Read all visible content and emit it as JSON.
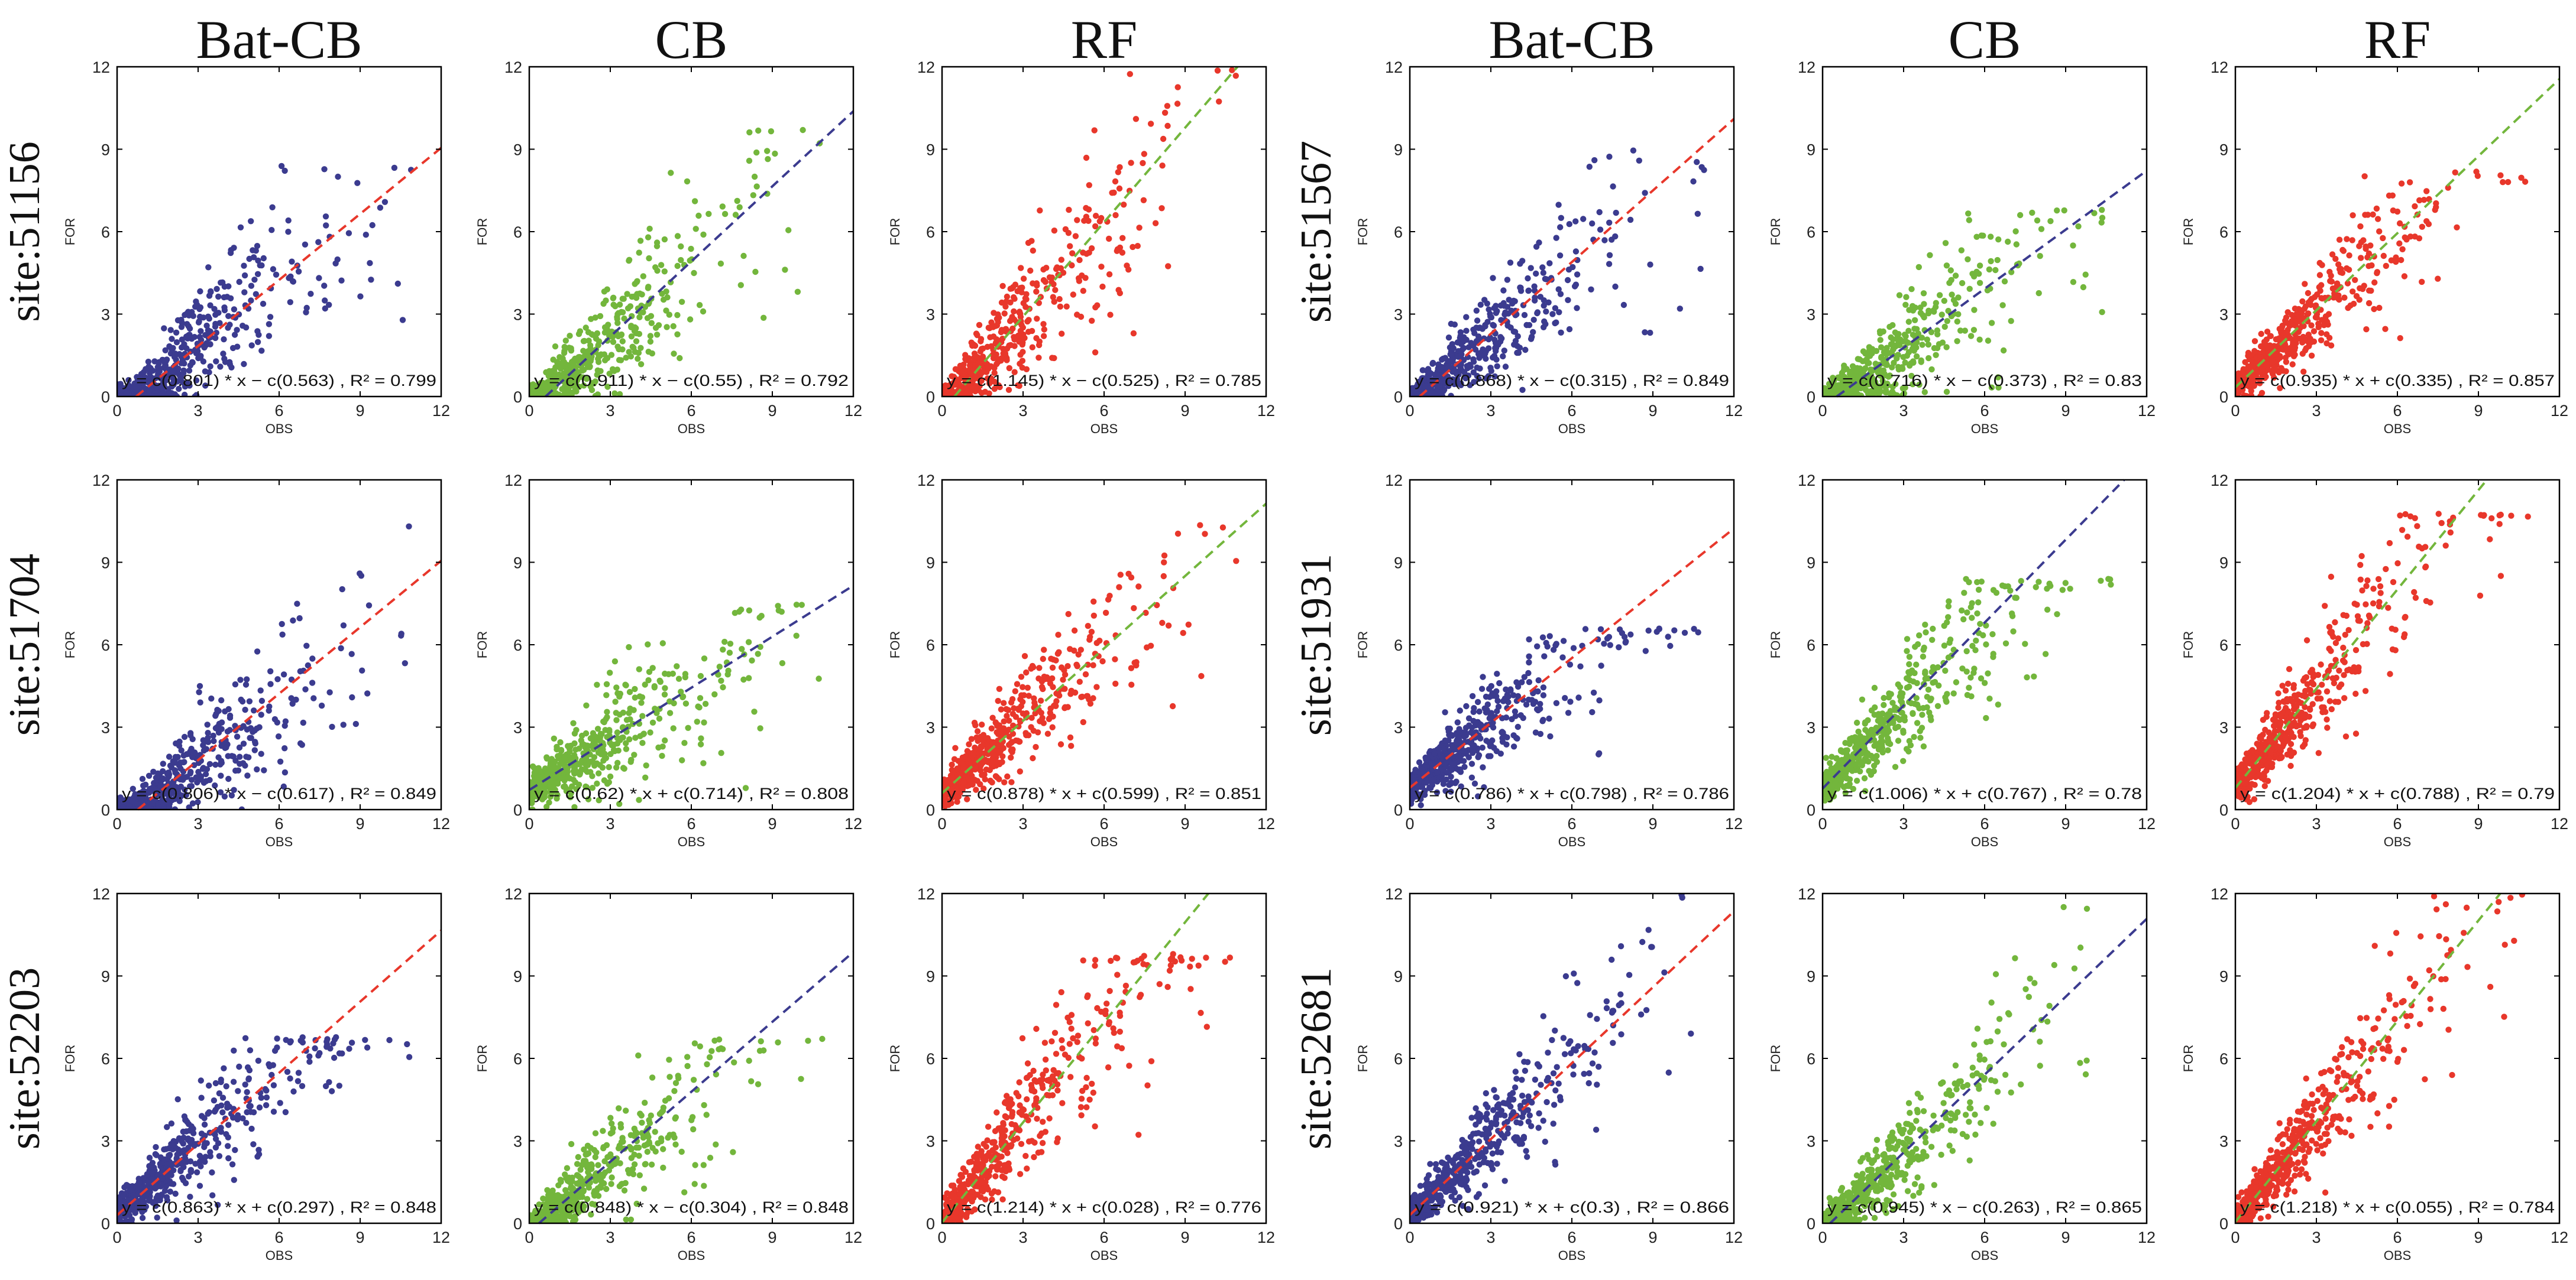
{
  "chart_data": [
    {
      "type": "scatter",
      "column_title": "Bat-CB",
      "row_title": "site:51156",
      "xlabel": "OBS",
      "ylabel": "FOR",
      "xlim": [
        0,
        12
      ],
      "ylim": [
        0,
        12
      ],
      "xticks": [
        0,
        3,
        6,
        9,
        12
      ],
      "yticks": [
        0,
        3,
        6,
        9,
        12
      ],
      "color": "#3b3b8f",
      "fit_color": "#e8372b",
      "slope": 0.801,
      "intercept": -0.563,
      "cap": 8.4,
      "spread": 0.22,
      "equation": "y = c(0.801) * x − c(0.563) , R² = 0.799"
    },
    {
      "type": "scatter",
      "column_title": "CB",
      "row_title": "site:51156",
      "xlabel": "OBS",
      "ylabel": "FOR",
      "xlim": [
        0,
        12
      ],
      "ylim": [
        0,
        12
      ],
      "xticks": [
        0,
        3,
        6,
        9,
        12
      ],
      "yticks": [
        0,
        3,
        6,
        9,
        12
      ],
      "color": "#73b63c",
      "fit_color": "#3b3b8f",
      "slope": 0.911,
      "intercept": -0.55,
      "cap": 9.7,
      "spread": 0.24,
      "equation": "y = c(0.911) * x − c(0.55) , R² = 0.792"
    },
    {
      "type": "scatter",
      "column_title": "RF",
      "row_title": "site:51156",
      "xlabel": "OBS",
      "ylabel": "FOR",
      "xlim": [
        0,
        12
      ],
      "ylim": [
        0,
        12
      ],
      "xticks": [
        0,
        3,
        6,
        9,
        12
      ],
      "yticks": [
        0,
        3,
        6,
        9,
        12
      ],
      "color": "#e8372b",
      "fit_color": "#73b63c",
      "slope": 1.145,
      "intercept": -0.525,
      "cap": 12,
      "spread": 0.28,
      "equation": "y = c(1.145) * x − c(0.525) , R² = 0.785"
    },
    {
      "type": "scatter",
      "column_title": "Bat-CB",
      "row_title": "site:51567",
      "xlabel": "OBS",
      "ylabel": "FOR",
      "xlim": [
        0,
        12
      ],
      "ylim": [
        0,
        12
      ],
      "xticks": [
        0,
        3,
        6,
        9,
        12
      ],
      "yticks": [
        0,
        3,
        6,
        9,
        12
      ],
      "color": "#3b3b8f",
      "fit_color": "#e8372b",
      "slope": 0.868,
      "intercept": -0.315,
      "cap": 9,
      "spread": 0.2,
      "equation": "y = c(0.868) * x − c(0.315) , R² = 0.849"
    },
    {
      "type": "scatter",
      "column_title": "CB",
      "row_title": "site:51567",
      "xlabel": "OBS",
      "ylabel": "FOR",
      "xlim": [
        0,
        12
      ],
      "ylim": [
        0,
        12
      ],
      "xticks": [
        0,
        3,
        6,
        9,
        12
      ],
      "yticks": [
        0,
        3,
        6,
        9,
        12
      ],
      "color": "#73b63c",
      "fit_color": "#3b3b8f",
      "slope": 0.716,
      "intercept": -0.373,
      "cap": 6.8,
      "spread": 0.2,
      "equation": "y = c(0.716) * x − c(0.373) , R² = 0.83"
    },
    {
      "type": "scatter",
      "column_title": "RF",
      "row_title": "site:51567",
      "xlabel": "OBS",
      "ylabel": "FOR",
      "xlim": [
        0,
        12
      ],
      "ylim": [
        0,
        12
      ],
      "xticks": [
        0,
        3,
        6,
        9,
        12
      ],
      "yticks": [
        0,
        3,
        6,
        9,
        12
      ],
      "color": "#e8372b",
      "fit_color": "#73b63c",
      "slope": 0.935,
      "intercept": 0.335,
      "cap": 8.2,
      "spread": 0.18,
      "equation": "y = c(0.935) * x + c(0.335) , R² = 0.857"
    },
    {
      "type": "scatter",
      "column_title": "Bat-CB",
      "row_title": "site:51704",
      "xlabel": "OBS",
      "ylabel": "FOR",
      "xlim": [
        0,
        12
      ],
      "ylim": [
        0,
        12
      ],
      "xticks": [
        0,
        3,
        6,
        9,
        12
      ],
      "yticks": [
        0,
        3,
        6,
        9,
        12
      ],
      "color": "#3b3b8f",
      "fit_color": "#e8372b",
      "slope": 0.806,
      "intercept": -0.617,
      "cap": 11,
      "spread": 0.2,
      "equation": "y = c(0.806) * x − c(0.617) , R² = 0.849"
    },
    {
      "type": "scatter",
      "column_title": "CB",
      "row_title": "site:51704",
      "xlabel": "OBS",
      "ylabel": "FOR",
      "xlim": [
        0,
        12
      ],
      "ylim": [
        0,
        12
      ],
      "xticks": [
        0,
        3,
        6,
        9,
        12
      ],
      "yticks": [
        0,
        3,
        6,
        9,
        12
      ],
      "color": "#73b63c",
      "fit_color": "#3b3b8f",
      "slope": 0.62,
      "intercept": 0.714,
      "cap": 7.6,
      "spread": 0.2,
      "equation": "y = c(0.62) * x + c(0.714) , R² = 0.808"
    },
    {
      "type": "scatter",
      "column_title": "RF",
      "row_title": "site:51704",
      "xlabel": "OBS",
      "ylabel": "FOR",
      "xlim": [
        0,
        12
      ],
      "ylim": [
        0,
        12
      ],
      "xticks": [
        0,
        3,
        6,
        9,
        12
      ],
      "yticks": [
        0,
        3,
        6,
        9,
        12
      ],
      "color": "#e8372b",
      "fit_color": "#73b63c",
      "slope": 0.878,
      "intercept": 0.599,
      "cap": 10.5,
      "spread": 0.2,
      "equation": "y = c(0.878) * x + c(0.599) , R² = 0.851"
    },
    {
      "type": "scatter",
      "column_title": "Bat-CB",
      "row_title": "site:51931",
      "xlabel": "OBS",
      "ylabel": "FOR",
      "xlim": [
        0,
        12
      ],
      "ylim": [
        0,
        12
      ],
      "xticks": [
        0,
        3,
        6,
        9,
        12
      ],
      "yticks": [
        0,
        3,
        6,
        9,
        12
      ],
      "color": "#3b3b8f",
      "fit_color": "#e8372b",
      "slope": 0.786,
      "intercept": 0.798,
      "cap": 6.6,
      "spread": 0.2,
      "equation": "y = c(0.786) * x + c(0.798) , R² = 0.786"
    },
    {
      "type": "scatter",
      "column_title": "CB",
      "row_title": "site:51931",
      "xlabel": "OBS",
      "ylabel": "FOR",
      "xlim": [
        0,
        12
      ],
      "ylim": [
        0,
        12
      ],
      "xticks": [
        0,
        3,
        6,
        9,
        12
      ],
      "yticks": [
        0,
        3,
        6,
        9,
        12
      ],
      "color": "#73b63c",
      "fit_color": "#3b3b8f",
      "slope": 1.006,
      "intercept": 0.767,
      "cap": 8.4,
      "spread": 0.22,
      "equation": "y = c(1.006) * x + c(0.767) , R² = 0.78"
    },
    {
      "type": "scatter",
      "column_title": "RF",
      "row_title": "site:51931",
      "xlabel": "OBS",
      "ylabel": "FOR",
      "xlim": [
        0,
        12
      ],
      "ylim": [
        0,
        12
      ],
      "xticks": [
        0,
        3,
        6,
        9,
        12
      ],
      "yticks": [
        0,
        3,
        6,
        9,
        12
      ],
      "color": "#e8372b",
      "fit_color": "#73b63c",
      "slope": 1.204,
      "intercept": 0.788,
      "cap": 10.8,
      "spread": 0.24,
      "equation": "y = c(1.204) * x + c(0.788) , R² = 0.79"
    },
    {
      "type": "scatter",
      "column_title": "Bat-CB",
      "row_title": "site:52203",
      "xlabel": "OBS",
      "ylabel": "FOR",
      "xlim": [
        0,
        12
      ],
      "ylim": [
        0,
        12
      ],
      "xticks": [
        0,
        3,
        6,
        9,
        12
      ],
      "yticks": [
        0,
        3,
        6,
        9,
        12
      ],
      "color": "#3b3b8f",
      "fit_color": "#e8372b",
      "slope": 0.863,
      "intercept": 0.297,
      "cap": 6.8,
      "spread": 0.2,
      "equation": "y = c(0.863) * x + c(0.297) , R² = 0.848"
    },
    {
      "type": "scatter",
      "column_title": "CB",
      "row_title": "site:52203",
      "xlabel": "OBS",
      "ylabel": "FOR",
      "xlim": [
        0,
        12
      ],
      "ylim": [
        0,
        12
      ],
      "xticks": [
        0,
        3,
        6,
        9,
        12
      ],
      "yticks": [
        0,
        3,
        6,
        9,
        12
      ],
      "color": "#73b63c",
      "fit_color": "#3b3b8f",
      "slope": 0.848,
      "intercept": -0.304,
      "cap": 6.8,
      "spread": 0.2,
      "equation": "y = c(0.848) * x − c(0.304) , R² = 0.848"
    },
    {
      "type": "scatter",
      "column_title": "RF",
      "row_title": "site:52203",
      "xlabel": "OBS",
      "ylabel": "FOR",
      "xlim": [
        0,
        12
      ],
      "ylim": [
        0,
        12
      ],
      "xticks": [
        0,
        3,
        6,
        9,
        12
      ],
      "yticks": [
        0,
        3,
        6,
        9,
        12
      ],
      "color": "#e8372b",
      "fit_color": "#73b63c",
      "slope": 1.214,
      "intercept": 0.028,
      "cap": 9.8,
      "spread": 0.24,
      "equation": "y = c(1.214) * x + c(0.028) , R² = 0.776"
    },
    {
      "type": "scatter",
      "column_title": "Bat-CB",
      "row_title": "site:52681",
      "xlabel": "OBS",
      "ylabel": "FOR",
      "xlim": [
        0,
        12
      ],
      "ylim": [
        0,
        12
      ],
      "xticks": [
        0,
        3,
        6,
        9,
        12
      ],
      "yticks": [
        0,
        3,
        6,
        9,
        12
      ],
      "color": "#3b3b8f",
      "fit_color": "#e8372b",
      "slope": 0.921,
      "intercept": 0.3,
      "cap": 12,
      "spread": 0.18,
      "equation": "y = c(0.921) * x + c(0.3) , R² = 0.866"
    },
    {
      "type": "scatter",
      "column_title": "CB",
      "row_title": "site:52681",
      "xlabel": "OBS",
      "ylabel": "FOR",
      "xlim": [
        0,
        12
      ],
      "ylim": [
        0,
        12
      ],
      "xticks": [
        0,
        3,
        6,
        9,
        12
      ],
      "yticks": [
        0,
        3,
        6,
        9,
        12
      ],
      "color": "#73b63c",
      "fit_color": "#3b3b8f",
      "slope": 0.945,
      "intercept": -0.263,
      "cap": 12,
      "spread": 0.18,
      "equation": "y = c(0.945) * x − c(0.263) , R² = 0.865"
    },
    {
      "type": "scatter",
      "column_title": "RF",
      "row_title": "site:52681",
      "xlabel": "OBS",
      "ylabel": "FOR",
      "xlim": [
        0,
        12
      ],
      "ylim": [
        0,
        12
      ],
      "xticks": [
        0,
        3,
        6,
        9,
        12
      ],
      "yticks": [
        0,
        3,
        6,
        9,
        12
      ],
      "color": "#e8372b",
      "fit_color": "#73b63c",
      "slope": 1.218,
      "intercept": 0.055,
      "cap": 12,
      "spread": 0.2,
      "equation": "y = c(1.218) * x + c(0.055) , R² = 0.784"
    }
  ]
}
